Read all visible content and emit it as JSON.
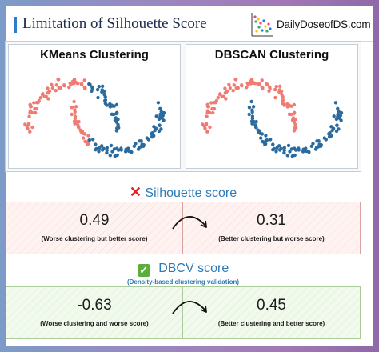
{
  "header": {
    "title": "Limitation of Silhouette Score",
    "brand": "DailyDoseofDS.com",
    "logo_icon": "scatter-logo-icon"
  },
  "colors": {
    "cluster_a": "#f07b72",
    "cluster_b": "#2a6a9e",
    "accent": "#2c7ab7",
    "bad": "#e32222",
    "good": "#5aae3a"
  },
  "plots": [
    {
      "title": "KMeans Clustering"
    },
    {
      "title": "DBSCAN Clustering"
    }
  ],
  "silhouette": {
    "heading": "Silhouette score",
    "icon": "cross-mark-icon",
    "left": {
      "score": "0.49",
      "note": "(Worse clustering but better score)"
    },
    "right": {
      "score": "0.31",
      "note": "(Better clustering but worse score)"
    }
  },
  "dbcv": {
    "heading": "DBCV score",
    "icon": "check-box-icon",
    "subtitle": "(Density-based clustering validation)",
    "left": {
      "score": "-0.63",
      "note": "(Worse clustering and worse score)"
    },
    "right": {
      "score": "0.45",
      "note": "(Better clustering and better score)"
    }
  }
}
